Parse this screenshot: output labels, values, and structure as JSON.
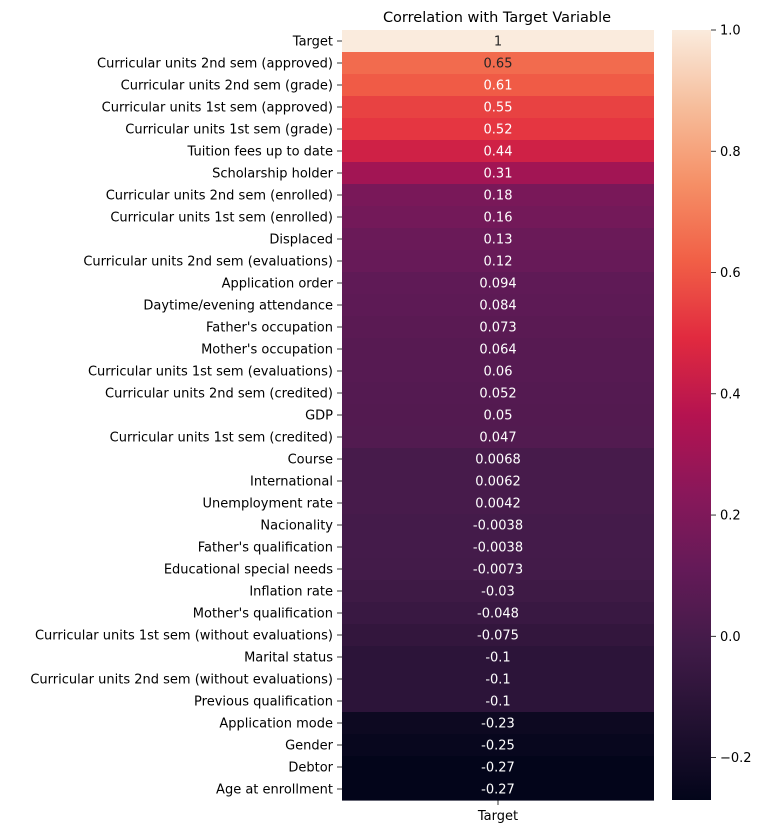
{
  "chart_data": {
    "type": "heatmap",
    "title": "Correlation with Target Variable",
    "xlabel": "",
    "ylabel": "",
    "x_tick_labels": [
      "Target"
    ],
    "colormap": "rocket",
    "colorbar": {
      "vmin": -0.27,
      "vmax": 1.0,
      "ticks": [
        1.0,
        0.8,
        0.6,
        0.4,
        0.2,
        0.0,
        -0.2
      ],
      "tick_labels": [
        "1.0",
        "0.8",
        "0.6",
        "0.4",
        "0.2",
        "0.0",
        "−0.2"
      ]
    },
    "rows": [
      {
        "label": "Target",
        "value": 1,
        "annot": "1"
      },
      {
        "label": "Curricular units 2nd sem (approved)",
        "value": 0.65,
        "annot": "0.65"
      },
      {
        "label": "Curricular units 2nd sem (grade)",
        "value": 0.61,
        "annot": "0.61"
      },
      {
        "label": "Curricular units 1st sem (approved)",
        "value": 0.55,
        "annot": "0.55"
      },
      {
        "label": "Curricular units 1st sem (grade)",
        "value": 0.52,
        "annot": "0.52"
      },
      {
        "label": "Tuition fees up to date",
        "value": 0.44,
        "annot": "0.44"
      },
      {
        "label": "Scholarship holder",
        "value": 0.31,
        "annot": "0.31"
      },
      {
        "label": "Curricular units 2nd sem (enrolled)",
        "value": 0.18,
        "annot": "0.18"
      },
      {
        "label": "Curricular units 1st sem (enrolled)",
        "value": 0.16,
        "annot": "0.16"
      },
      {
        "label": "Displaced",
        "value": 0.13,
        "annot": "0.13"
      },
      {
        "label": "Curricular units 2nd sem (evaluations)",
        "value": 0.12,
        "annot": "0.12"
      },
      {
        "label": "Application order",
        "value": 0.094,
        "annot": "0.094"
      },
      {
        "label": "Daytime/evening attendance",
        "value": 0.084,
        "annot": "0.084"
      },
      {
        "label": "Father's occupation",
        "value": 0.073,
        "annot": "0.073"
      },
      {
        "label": "Mother's occupation",
        "value": 0.064,
        "annot": "0.064"
      },
      {
        "label": "Curricular units 1st sem (evaluations)",
        "value": 0.06,
        "annot": "0.06"
      },
      {
        "label": "Curricular units 2nd sem (credited)",
        "value": 0.052,
        "annot": "0.052"
      },
      {
        "label": "GDP",
        "value": 0.05,
        "annot": "0.05"
      },
      {
        "label": "Curricular units 1st sem (credited)",
        "value": 0.047,
        "annot": "0.047"
      },
      {
        "label": "Course",
        "value": 0.0068,
        "annot": "0.0068"
      },
      {
        "label": "International",
        "value": 0.0062,
        "annot": "0.0062"
      },
      {
        "label": "Unemployment rate",
        "value": 0.0042,
        "annot": "0.0042"
      },
      {
        "label": "Nacionality",
        "value": -0.0038,
        "annot": "-0.0038"
      },
      {
        "label": "Father's qualification",
        "value": -0.0038,
        "annot": "-0.0038"
      },
      {
        "label": "Educational special needs",
        "value": -0.0073,
        "annot": "-0.0073"
      },
      {
        "label": "Inflation rate",
        "value": -0.03,
        "annot": "-0.03"
      },
      {
        "label": "Mother's qualification",
        "value": -0.048,
        "annot": "-0.048"
      },
      {
        "label": "Curricular units 1st sem (without evaluations)",
        "value": -0.075,
        "annot": "-0.075"
      },
      {
        "label": "Marital status",
        "value": -0.1,
        "annot": "-0.1"
      },
      {
        "label": "Curricular units 2nd sem (without evaluations)",
        "value": -0.1,
        "annot": "-0.1"
      },
      {
        "label": "Previous qualification",
        "value": -0.1,
        "annot": "-0.1"
      },
      {
        "label": "Application mode",
        "value": -0.23,
        "annot": "-0.23"
      },
      {
        "label": "Gender",
        "value": -0.25,
        "annot": "-0.25"
      },
      {
        "label": "Debtor",
        "value": -0.27,
        "annot": "-0.27"
      },
      {
        "label": "Age at enrollment",
        "value": -0.27,
        "annot": "-0.27"
      }
    ]
  }
}
